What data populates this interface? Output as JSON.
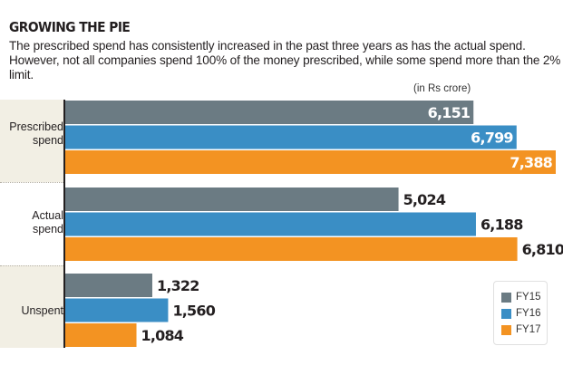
{
  "header": {
    "title": "GROWING THE PIE",
    "subtitle": "The prescribed spend has consistently increased in the past three years as has the actual spend. However, not all companies spend 100% of the money prescribed, while some spend more than the 2% limit.",
    "unit": "(in Rs crore)"
  },
  "colors": {
    "FY15": "#6b7b83",
    "FY16": "#3a8ec5",
    "FY17": "#f39322",
    "label_bg": "#f2efe4"
  },
  "legend": [
    {
      "label": "FY15",
      "color": "#6b7b83"
    },
    {
      "label": "FY16",
      "color": "#3a8ec5"
    },
    {
      "label": "FY17",
      "color": "#f39322"
    }
  ],
  "chart_data": {
    "type": "bar",
    "orientation": "horizontal",
    "title": "GROWING THE PIE",
    "subtitle": "The prescribed spend has consistently increased in the past three years as has the actual spend. However, not all companies spend 100% of the money prescribed, while some spend more than the 2% limit.",
    "unit": "(in Rs crore)",
    "categories": [
      "Prescribed spend",
      "Actual spend",
      "Unspent"
    ],
    "category_lines": [
      [
        "Prescribed",
        "spend"
      ],
      [
        "Actual",
        "spend"
      ],
      [
        "Unspent"
      ]
    ],
    "series": [
      {
        "name": "FY15",
        "values": [
          6151,
          5024,
          1322
        ],
        "labels": [
          "6,151",
          "5,024",
          "1,322"
        ]
      },
      {
        "name": "FY16",
        "values": [
          6799,
          6188,
          1560
        ],
        "labels": [
          "6,799",
          "6,188",
          "1,560"
        ]
      },
      {
        "name": "FY17",
        "values": [
          7388,
          6810,
          1084
        ],
        "labels": [
          "7,388",
          "6,810",
          "1,084"
        ]
      }
    ],
    "xlim": [
      0,
      7388
    ],
    "grid": false,
    "legend_position": "bottom-right",
    "labels_inside_for_category": "Prescribed spend"
  }
}
